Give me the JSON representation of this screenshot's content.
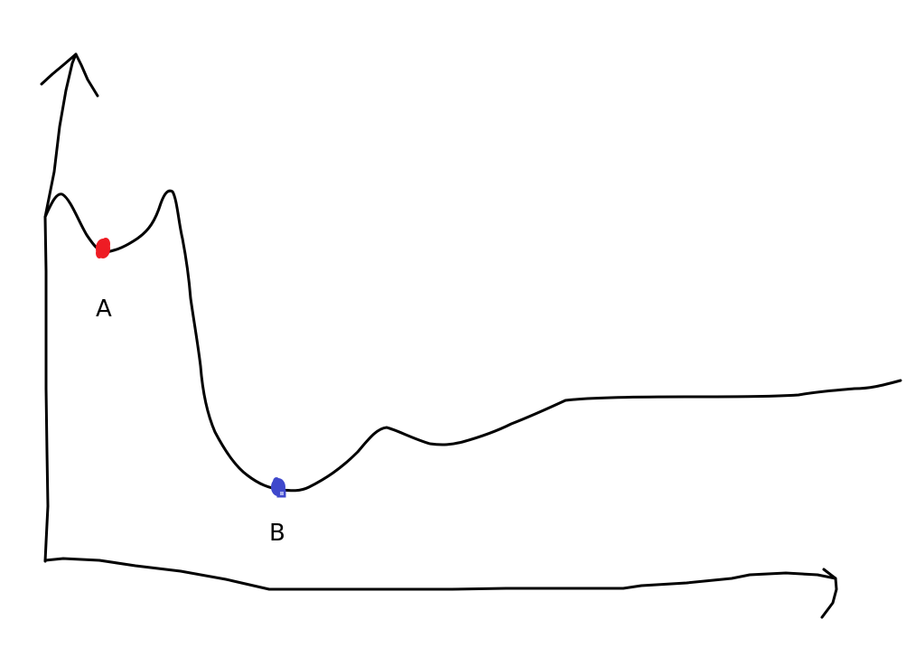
{
  "colors": {
    "ink": "#000000",
    "background": "#ffffff",
    "point_a": "#ee1c24",
    "point_b": "#3f48cc"
  },
  "points": {
    "a": {
      "label": "A"
    },
    "b": {
      "label": "B"
    }
  }
}
